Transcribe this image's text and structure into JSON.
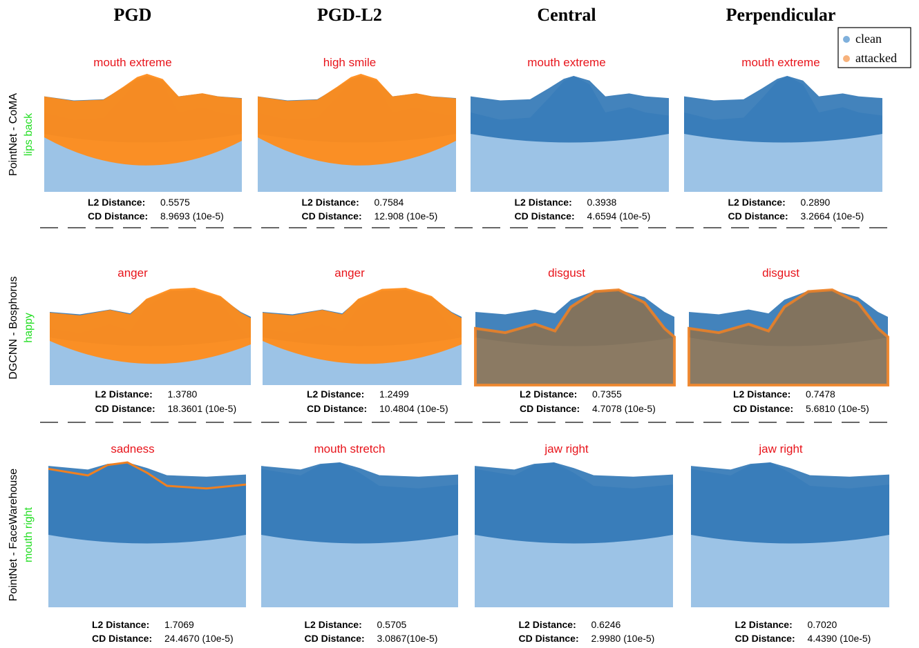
{
  "columns": [
    "PGD",
    "PGD-L2",
    "Central",
    "Perpendicular"
  ],
  "legend": [
    "clean",
    "attacked"
  ],
  "rows": [
    {
      "model": "PointNet - CoMA",
      "true_label": "lips back",
      "cells": [
        {
          "prediction": "mouth extreme",
          "l2_label": "L2 Distance:",
          "l2": "0.5575",
          "cd_label": "CD Distance:",
          "cd": "8.9693 (10e-5)"
        },
        {
          "prediction": "high smile",
          "l2_label": "L2 Distance:",
          "l2": "0.7584",
          "cd_label": "CD Distance:",
          "cd": "12.908 (10e-5)"
        },
        {
          "prediction": "mouth extreme",
          "l2_label": "L2 Distance:",
          "l2": "0.3938",
          "cd_label": "CD Distance:",
          "cd": "4.6594 (10e-5)"
        },
        {
          "prediction": "mouth extreme",
          "l2_label": "L2 Distance:",
          "l2": "0.2890",
          "cd_label": "CD Distance:",
          "cd": "3.2664 (10e-5)"
        }
      ]
    },
    {
      "model": "DGCNN - Bosphorus",
      "true_label": "happy",
      "cells": [
        {
          "prediction": "anger",
          "l2_label": "L2 Distance:",
          "l2": "1.3780",
          "cd_label": "CD Distance:",
          "cd": "18.3601  (10e-5)"
        },
        {
          "prediction": "anger",
          "l2_label": "L2 Distance:",
          "l2": "1.2499",
          "cd_label": "CD Distance:",
          "cd": "10.4804 (10e-5)"
        },
        {
          "prediction": "disgust",
          "l2_label": "L2 Distance:",
          "l2": "0.7355",
          "cd_label": "CD Distance:",
          "cd": "4.7078 (10e-5)"
        },
        {
          "prediction": "disgust",
          "l2_label": "L2 Distance:",
          "l2": "0.7478",
          "cd_label": "CD Distance:",
          "cd": "5.6810 (10e-5)"
        }
      ]
    },
    {
      "model": "PointNet - FaceWarehouse",
      "true_label": "mouth right",
      "cells": [
        {
          "prediction": "sadness",
          "l2_label": "L2 Distance:",
          "l2": "1.7069",
          "cd_label": "CD Distance:",
          "cd": "24.4670 (10e-5)"
        },
        {
          "prediction": "mouth stretch",
          "l2_label": "L2 Distance:",
          "l2": "0.5705",
          "cd_label": "CD Distance:",
          "cd": "3.0867(10e-5)"
        },
        {
          "prediction": "jaw right",
          "l2_label": "L2 Distance:",
          "l2": "0.6246",
          "cd_label": "CD Distance:",
          "cd": "2.9980 (10e-5)"
        },
        {
          "prediction": "jaw right",
          "l2_label": "L2 Distance:",
          "l2": "0.7020",
          "cd_label": "CD Distance:",
          "cd": "4.4390 (10e-5)"
        }
      ]
    }
  ]
}
